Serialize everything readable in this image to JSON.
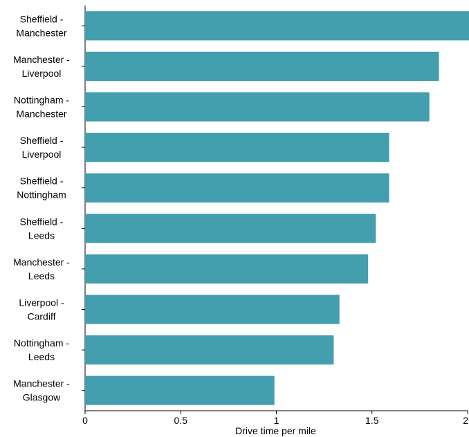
{
  "chart_data": {
    "type": "bar",
    "orientation": "horizontal",
    "categories": [
      [
        "Sheffield -",
        "Manchester"
      ],
      [
        "Manchester -",
        "Liverpool"
      ],
      [
        "Nottingham -",
        "Manchester"
      ],
      [
        "Sheffield -",
        "Liverpool"
      ],
      [
        "Sheffield -",
        "Nottingham"
      ],
      [
        "Sheffield -",
        "Leeds"
      ],
      [
        "Manchester -",
        "Leeds"
      ],
      [
        "Liverpool -",
        "Cardiff"
      ],
      [
        "Nottingham -",
        "Leeds"
      ],
      [
        "Manchester -",
        "Glasgow"
      ]
    ],
    "values": [
      2.01,
      1.85,
      1.8,
      1.59,
      1.59,
      1.52,
      1.48,
      1.33,
      1.3,
      0.99
    ],
    "xlabel": "Drive time per mile",
    "ylabel": "",
    "xlim": [
      0,
      2
    ],
    "xticks": [
      0,
      0.5,
      1,
      1.5,
      2
    ],
    "xtick_labels": [
      "0",
      "0.5",
      "1",
      "1.5",
      "2"
    ],
    "grid": false,
    "legend": "none",
    "bar_color": "#439FAE"
  }
}
